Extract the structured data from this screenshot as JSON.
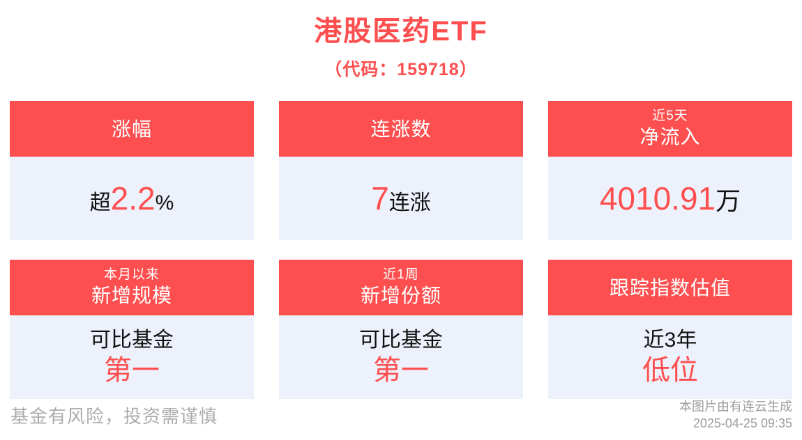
{
  "header": {
    "title": "港股医药ETF",
    "subtitle": "（代码：159718）"
  },
  "cards": {
    "change": {
      "header": "涨幅",
      "prefix": "超",
      "value": "2.2",
      "suffix": "%"
    },
    "streak": {
      "header": "连涨数",
      "value": "7",
      "suffix": "连涨"
    },
    "inflow": {
      "header_small": "近5天",
      "header": "净流入",
      "value": "4010.91",
      "unit": "万"
    },
    "scale": {
      "header_small": "本月以来",
      "header": "新增规模",
      "line1": "可比基金",
      "line2": "第一"
    },
    "shares": {
      "header_small": "近1周",
      "header": "新增份额",
      "line1": "可比基金",
      "line2": "第一"
    },
    "valuation": {
      "header": "跟踪指数估值",
      "line1": "近3年",
      "line2": "低位"
    }
  },
  "footer": {
    "disclaimer": "基金有风险，投资需谨慎",
    "credit": "本图片由有连云生成",
    "timestamp": "2025-04-25 09:35"
  },
  "colors": {
    "accent": "#FD4F4F",
    "card_body_bg": "#EDF1FB",
    "text_dark": "#111111",
    "footer_gray_left": "#ACACAC",
    "footer_gray_right": "#9C9C9C"
  }
}
